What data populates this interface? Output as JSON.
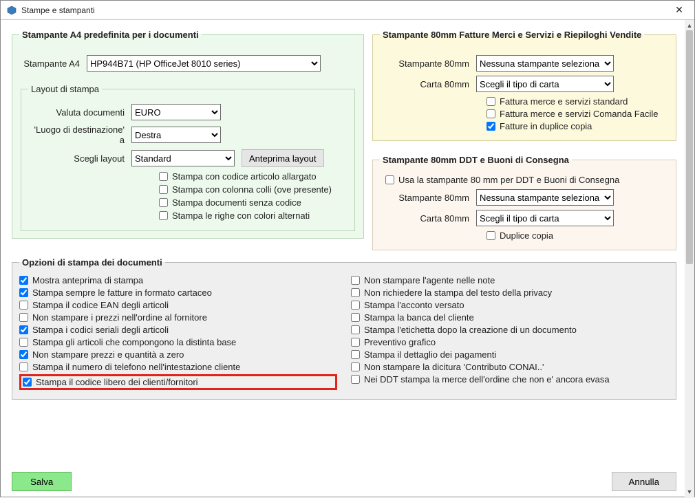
{
  "window": {
    "title": "Stampe e stampanti",
    "close_label": "✕"
  },
  "a4": {
    "legend": "Stampante A4 predefinita per i documenti",
    "printer_label": "Stampante A4",
    "printer_value": "HP944B71 (HP OfficeJet 8010 series)",
    "layout": {
      "legend": "Layout di stampa",
      "currency_label": "Valuta documenti",
      "currency_value": "EURO",
      "dest_label": "'Luogo di destinazione' a",
      "dest_value": "Destra",
      "layout_label": "Scegli layout",
      "layout_value": "Standard",
      "preview_button": "Anteprima layout",
      "check_wide_code": "Stampa con codice articolo allargato",
      "check_colli": "Stampa con colonna colli (ove presente)",
      "check_nocode": "Stampa documenti senza codice",
      "check_altrows": "Stampa le righe con colori alternati"
    }
  },
  "mm80_invoice": {
    "legend": "Stampante 80mm Fatture Merci e Servizi e Riepiloghi Vendite",
    "printer_label": "Stampante 80mm",
    "printer_value": "Nessuna stampante seleziona",
    "paper_label": "Carta 80mm",
    "paper_value": "Scegli il tipo di carta",
    "check_standard": "Fattura merce e servizi standard",
    "check_comanda": "Fattura merce e servizi Comanda Facile",
    "check_dup": "Fatture in duplice copia"
  },
  "mm80_ddt": {
    "legend": "Stampante 80mm DDT e Buoni di Consegna",
    "check_use80": "Usa la stampante 80 mm per DDT e Buoni di Consegna",
    "printer_label": "Stampante 80mm",
    "printer_value": "Nessuna stampante seleziona",
    "paper_label": "Carta 80mm",
    "paper_value": "Scegli il tipo di carta",
    "check_dup": "Duplice copia"
  },
  "opts": {
    "legend": "Opzioni di stampa dei documenti",
    "left": [
      {
        "label": "Mostra anteprima di stampa",
        "checked": true
      },
      {
        "label": "Stampa sempre le fatture in formato cartaceo",
        "checked": true
      },
      {
        "label": "Stampa il codice EAN degli articoli",
        "checked": false
      },
      {
        "label": "Non stampare i prezzi nell'ordine al fornitore",
        "checked": false
      },
      {
        "label": "Stampa i codici seriali degli articoli",
        "checked": true
      },
      {
        "label": "Stampa gli articoli che compongono la distinta base",
        "checked": false
      },
      {
        "label": "Non stampare prezzi e quantità a zero",
        "checked": true
      },
      {
        "label": "Stampa il numero di telefono nell'intestazione cliente",
        "checked": false
      },
      {
        "label": "Stampa il codice libero dei clienti/fornitori",
        "checked": true,
        "highlight": true
      }
    ],
    "right": [
      {
        "label": "Non stampare l'agente nelle note",
        "checked": false
      },
      {
        "label": "Non richiedere la stampa del testo della privacy",
        "checked": false
      },
      {
        "label": "Stampa l'acconto versato",
        "checked": false
      },
      {
        "label": "Stampa la banca del cliente",
        "checked": false
      },
      {
        "label": "Stampa l'etichetta dopo la creazione di un documento",
        "checked": false
      },
      {
        "label": "Preventivo grafico",
        "checked": false
      },
      {
        "label": "Stampa il dettaglio dei pagamenti",
        "checked": false
      },
      {
        "label": "Non stampare la dicitura 'Contributo CONAI..'",
        "checked": false
      },
      {
        "label": "Nei DDT stampa la merce dell'ordine che non e' ancora evasa",
        "checked": false
      }
    ]
  },
  "footer": {
    "save": "Salva",
    "cancel": "Annulla"
  },
  "colors": {
    "green_bg": "#edf9ed",
    "yellow_bg": "#fdf9dd",
    "beige_bg": "#fcf6ee",
    "grey_bg": "#efefef",
    "save_bg": "#8be88b",
    "highlight": "#e2231a"
  }
}
